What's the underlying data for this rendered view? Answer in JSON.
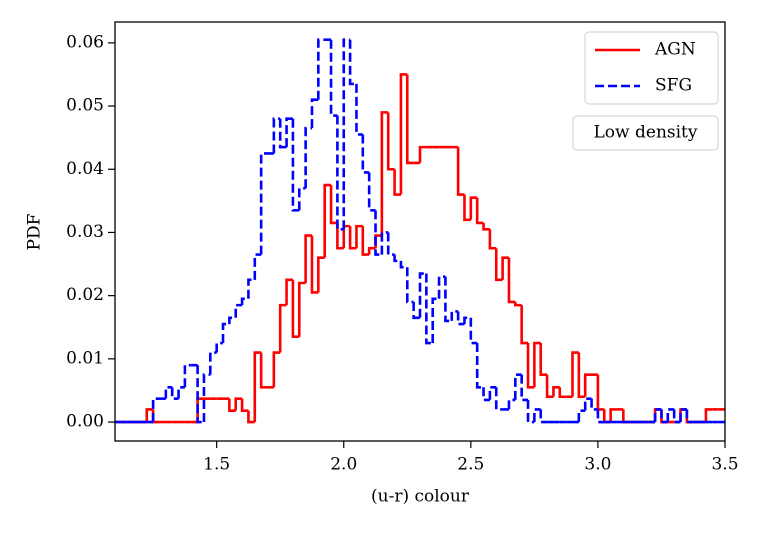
{
  "chart_data": {
    "type": "histogram",
    "histtype": "step",
    "xlabel": "(u-r) colour",
    "ylabel": "PDF",
    "annotation": "Low density",
    "bins": [
      1.1,
      1.125,
      1.15,
      1.175,
      1.2,
      1.225,
      1.25,
      1.275,
      1.3,
      1.325,
      1.35,
      1.375,
      1.4,
      1.425,
      1.45,
      1.475,
      1.5,
      1.525,
      1.55,
      1.575,
      1.6,
      1.625,
      1.65,
      1.675,
      1.7,
      1.725,
      1.75,
      1.775,
      1.8,
      1.825,
      1.85,
      1.875,
      1.9,
      1.925,
      1.95,
      1.975,
      2.0,
      2.025,
      2.05,
      2.075,
      2.1,
      2.125,
      2.15,
      2.175,
      2.2,
      2.225,
      2.25,
      2.275,
      2.3,
      2.325,
      2.35,
      2.375,
      2.4,
      2.425,
      2.45,
      2.475,
      2.5,
      2.525,
      2.55,
      2.575,
      2.6,
      2.625,
      2.65,
      2.675,
      2.7,
      2.725,
      2.75,
      2.775,
      2.8,
      2.825,
      2.85,
      2.875,
      2.9,
      2.925,
      2.95,
      2.975,
      3.0,
      3.025,
      3.05,
      3.075,
      3.1,
      3.125,
      3.15,
      3.175,
      3.2,
      3.225,
      3.25,
      3.275,
      3.3,
      3.325,
      3.35,
      3.375,
      3.4,
      3.425,
      3.45,
      3.475,
      3.5
    ],
    "series": [
      {
        "name": "AGN",
        "color": "#ff0000",
        "linestyle": "solid",
        "values": [
          0,
          0,
          0,
          0,
          0,
          0.002,
          0,
          0,
          0,
          0,
          0,
          0,
          0,
          0.0037,
          0.0037,
          0.0037,
          0.0037,
          0.0037,
          0.0018,
          0.0037,
          0.0018,
          0,
          0.011,
          0.0055,
          0.0055,
          0.011,
          0.0185,
          0.0225,
          0.0135,
          0.022,
          0.0295,
          0.0205,
          0.026,
          0.0375,
          0.0315,
          0.0275,
          0.031,
          0.0275,
          0.031,
          0.0265,
          0.0275,
          0.0295,
          0.049,
          0.04,
          0.036,
          0.055,
          0.041,
          0.041,
          0.0435,
          0.0435,
          0.0435,
          0.0435,
          0.0435,
          0.0435,
          0.036,
          0.032,
          0.0355,
          0.0315,
          0.0305,
          0.0275,
          0.0225,
          0.026,
          0.019,
          0.0185,
          0.0125,
          0.0055,
          0.0125,
          0.0075,
          0.004,
          0.0055,
          0.004,
          0.004,
          0.011,
          0.004,
          0.0075,
          0.0075,
          0.002,
          0,
          0.002,
          0.002,
          0,
          0,
          0,
          0,
          0,
          0.002,
          0,
          0,
          0,
          0.002,
          0,
          0,
          0,
          0.002,
          0.002,
          0.002
        ]
      },
      {
        "name": "SFG",
        "color": "#0000ff",
        "linestyle": "dashed",
        "values": [
          0,
          0,
          0,
          0,
          0,
          0,
          0.0037,
          0.0037,
          0.0055,
          0.0037,
          0.0055,
          0.009,
          0.009,
          0,
          0.0075,
          0.011,
          0.0125,
          0.0155,
          0.0165,
          0.0185,
          0.0195,
          0.0225,
          0.0265,
          0.0425,
          0.0425,
          0.048,
          0.0435,
          0.048,
          0.0335,
          0.037,
          0.0465,
          0.051,
          0.0605,
          0.0605,
          0.0485,
          0.0305,
          0.0605,
          0.0535,
          0.0455,
          0.0395,
          0.0335,
          0.0265,
          0.03,
          0.0265,
          0.0255,
          0.0245,
          0.019,
          0.0165,
          0.0235,
          0.0125,
          0.0195,
          0.023,
          0.016,
          0.0175,
          0.0155,
          0.0165,
          0.0125,
          0.0055,
          0.0035,
          0.0055,
          0.002,
          0.002,
          0.0035,
          0.0075,
          0.0035,
          0,
          0.002,
          0,
          0,
          0,
          0,
          0,
          0,
          0.0018,
          0.0037,
          0.002,
          0,
          0,
          0,
          0,
          0,
          0,
          0,
          0,
          0,
          0.002,
          0,
          0.002,
          0,
          0.002,
          0,
          0,
          0,
          0,
          0,
          0
        ]
      }
    ],
    "xlim": [
      1.1,
      3.5
    ],
    "ylim": [
      -0.003,
      0.0633
    ],
    "xticks": [
      1.5,
      {
        "value": 2,
        "label": "2.0"
      },
      2.5,
      {
        "value": 3,
        "label": "3.0"
      },
      3.5
    ],
    "yticks": [
      {
        "value": 0,
        "label": "0.00"
      },
      0.01,
      0.02,
      0.03,
      0.04,
      0.05,
      0.06
    ],
    "legend": "upper right",
    "grid": false
  }
}
